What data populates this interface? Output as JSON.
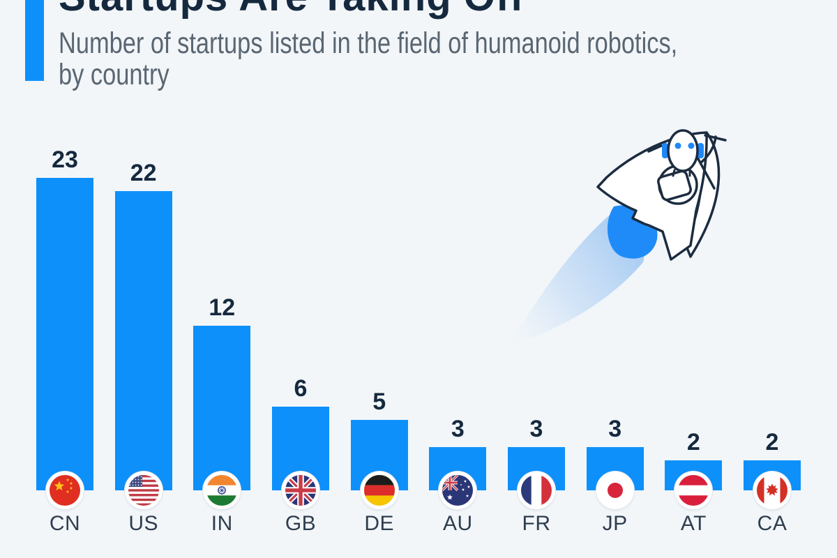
{
  "page": {
    "background_color": "#f2f6f9",
    "accent_color": "#0d90fa",
    "navy_color": "#15293e",
    "subtitle_color": "#5a6671",
    "country_label_color": "#2e3d4e"
  },
  "header": {
    "title": "Startups Are Taking Off",
    "subtitle_line1": "Number of startups listed in the field of humanoid robotics,",
    "subtitle_line2": "by country"
  },
  "chart_data": {
    "type": "bar",
    "title": "Startups Are Taking Off",
    "subtitle": "Number of startups listed in the field of humanoid robotics, by country",
    "categories": [
      "CN",
      "US",
      "IN",
      "GB",
      "DE",
      "AU",
      "FR",
      "JP",
      "AT",
      "CA"
    ],
    "values": [
      23,
      22,
      12,
      6,
      5,
      3,
      3,
      3,
      2,
      2
    ],
    "flags": [
      "cn",
      "us",
      "in",
      "gb",
      "de",
      "au",
      "fr",
      "jp",
      "at",
      "ca"
    ],
    "xlabel": "",
    "ylabel": "",
    "ylim": [
      0,
      24
    ],
    "grid": false,
    "legend": "none",
    "bar_color": "#0d90fa",
    "value_label_color": "#15293e"
  },
  "illustration": {
    "name": "robot-rocket",
    "flame_color": "#1f8bf8",
    "trail_color": "#9fc7f2",
    "outline_color": "#1c2c40",
    "eye_color": "#1e88f7",
    "body_color": "#ffffff"
  }
}
